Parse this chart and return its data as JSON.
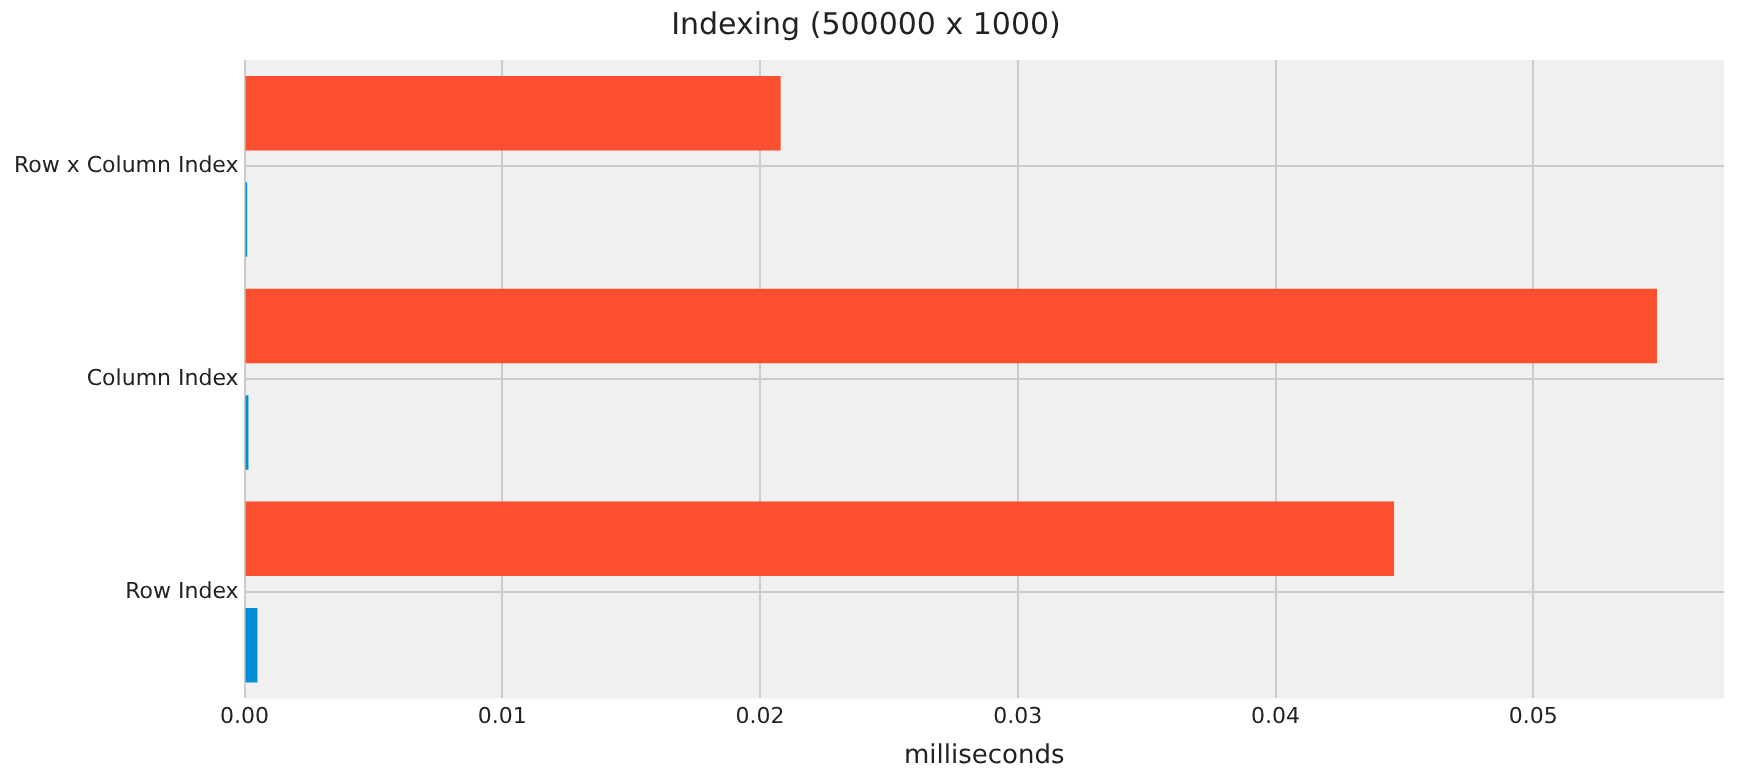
{
  "chart_data": {
    "type": "bar",
    "orientation": "horizontal",
    "title": "Indexing (500000 x 1000)",
    "xlabel": "milliseconds",
    "categories": [
      "Row x Column Index",
      "Column Index",
      "Row Index"
    ],
    "series": [
      {
        "color": "#fc4f30",
        "values": [
          0.0208,
          0.0548,
          0.0446
        ]
      },
      {
        "color": "#008fd5",
        "values": [
          0.0001,
          0.00015,
          0.0005
        ]
      }
    ],
    "xlim": [
      0,
      0.0574
    ],
    "xticks": [
      {
        "value": 0,
        "label": "0.00"
      },
      {
        "value": 0.01,
        "label": "0.01"
      },
      {
        "value": 0.02,
        "label": "0.02"
      },
      {
        "value": 0.03,
        "label": "0.03"
      },
      {
        "value": 0.04,
        "label": "0.04"
      },
      {
        "value": 0.05,
        "label": "0.05"
      }
    ],
    "grid": true
  }
}
